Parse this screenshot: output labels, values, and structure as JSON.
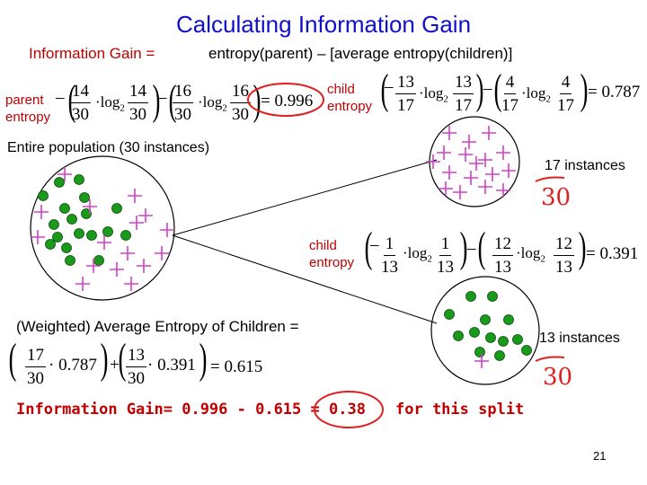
{
  "title": "Calculating Information Gain",
  "formula": {
    "label": "Information Gain =",
    "expression": "entropy(parent) – [average entropy(children)]"
  },
  "parent": {
    "label_line1": "parent",
    "label_line2": "entropy",
    "t1": {
      "num": "14",
      "den": "30"
    },
    "t2": {
      "num": "16",
      "den": "30"
    },
    "log": "log",
    "base": "2",
    "result": "= 0.996"
  },
  "child1": {
    "label_line1": "child",
    "label_line2": "entropy",
    "t1": {
      "num": "13",
      "den": "17"
    },
    "t2": {
      "num": "4",
      "den": "17"
    },
    "result": "= 0.787"
  },
  "child2": {
    "label_line1": "child",
    "label_line2": "entropy",
    "t1": {
      "num": "1",
      "den": "13"
    },
    "t2": {
      "num": "12",
      "den": "13"
    },
    "result": "= 0.391"
  },
  "population_label": "Entire population (30 instances)",
  "instances1": "17 instances",
  "instances2": "13 instances",
  "handwritten1": "30",
  "handwritten2": "30",
  "weighted": {
    "label": "(Weighted) Average Entropy of Children =",
    "f1": {
      "num": "17",
      "den": "30"
    },
    "v1": "· 0.787",
    "f2": {
      "num": "13",
      "den": "30"
    },
    "v2": "· 0.391",
    "result": "= 0.615"
  },
  "gain_line": "Information Gain= 0.996 - 0.615 = 0.38",
  "split_label": "for this split",
  "page_number": "21",
  "colors": {
    "title": "#1010c8",
    "label_red": "#c00000",
    "dot_green": "#1a9a1a",
    "plus_pink": "#d040c8",
    "annotation_red": "#e02020"
  }
}
